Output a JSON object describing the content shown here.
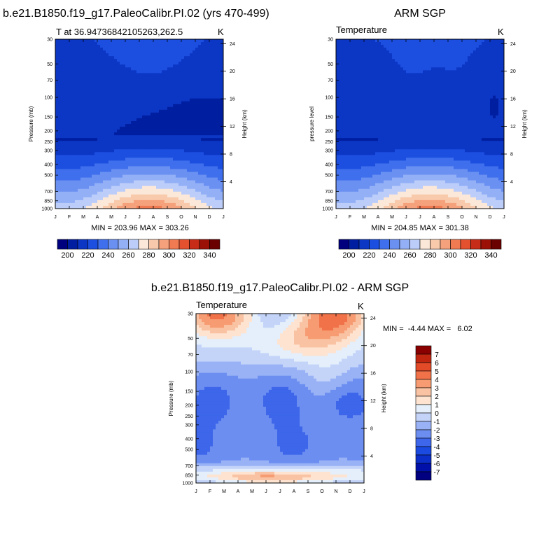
{
  "months": [
    "J",
    "F",
    "M",
    "A",
    "M",
    "J",
    "J",
    "A",
    "S",
    "O",
    "N",
    "D",
    "J"
  ],
  "pressure_ticks": [
    30,
    50,
    70,
    100,
    150,
    200,
    250,
    300,
    400,
    500,
    700,
    850,
    1000
  ],
  "height_ticks": [
    4,
    8,
    12,
    16,
    20,
    24
  ],
  "panels": [
    {
      "id": "model",
      "title": "b.e21.B1850.f19_g17.PaleoCalibr.PI.02 (yrs 470-499)",
      "subtitle_left": "T at 36.94736842105263,262.5",
      "subtitle_right": "K",
      "ylabel_left": "Pressure (mb)",
      "ylabel_right": "Height (km)",
      "minmax": "MIN = 203.96 MAX = 303.26",
      "min": 203.96,
      "max": 303.26,
      "colorbar_labels": [
        "200",
        "220",
        "240",
        "260",
        "280",
        "300",
        "320",
        "340"
      ]
    },
    {
      "id": "obs",
      "title": "ARM SGP",
      "subtitle_left": "Temperature",
      "subtitle_right": "K",
      "ylabel_left": "pressure level",
      "ylabel_right": "Height (km)",
      "minmax": "MIN = 204.85 MAX = 301.38",
      "min": 204.85,
      "max": 301.38,
      "colorbar_labels": [
        "200",
        "220",
        "240",
        "260",
        "280",
        "300",
        "320",
        "340"
      ]
    },
    {
      "id": "diff",
      "title": "b.e21.B1850.f19_g17.PaleoCalibr.PI.02 - ARM SGP",
      "subtitle_left": "Temperature",
      "subtitle_right": "K",
      "ylabel_left": "Pressure (mb)",
      "ylabel_right": "Height (km)",
      "minmax": "MIN =  -4.44 MAX =   6.02",
      "min": -4.44,
      "max": 6.02,
      "colorbar_labels": [
        "7",
        "6",
        "5",
        "4",
        "3",
        "2",
        "1",
        "0",
        "-1",
        "-2",
        "-3",
        "-4",
        "-5",
        "-6",
        "-7"
      ]
    }
  ],
  "colors": {
    "temp_scale": [
      "#00007f",
      "#001ea0",
      "#0c36c4",
      "#1c4fe0",
      "#3f6fec",
      "#6a90f2",
      "#93b0f6",
      "#bccdf9",
      "#fbe8d8",
      "#f8c9ab",
      "#f5a27c",
      "#f07a52",
      "#e4512f",
      "#c62c17",
      "#9c1106",
      "#6b0000"
    ],
    "diff_scale": [
      "#000080",
      "#0010a8",
      "#0c2ec8",
      "#1a4ae0",
      "#3d66ea",
      "#6c8ef0",
      "#99b2f5",
      "#c4d4f9",
      "#e4effb",
      "#fde3d0",
      "#f9c3a3",
      "#f79c72",
      "#f17249",
      "#e24a28",
      "#c02510",
      "#8a0000"
    ]
  },
  "chart_data": [
    {
      "type": "heatmap",
      "title": "b.e21.B1850.f19_g17.PaleoCalibr.PI.02 (yrs 470-499)",
      "subtitle": "T at 36.94736842105263,262.5",
      "units": "K",
      "x": [
        "J",
        "F",
        "M",
        "A",
        "M",
        "J",
        "J",
        "A",
        "S",
        "O",
        "N",
        "D",
        "J"
      ],
      "y_pressure_mb": [
        30,
        50,
        70,
        100,
        150,
        200,
        250,
        300,
        400,
        500,
        700,
        850,
        1000
      ],
      "contour_levels": [
        190,
        200,
        210,
        220,
        230,
        240,
        250,
        260,
        270,
        280,
        290,
        300,
        310,
        320,
        330,
        340,
        350
      ],
      "min": 203.96,
      "max": 303.26
    },
    {
      "type": "heatmap",
      "title": "ARM SGP",
      "subtitle": "Temperature",
      "units": "K",
      "x": [
        "J",
        "F",
        "M",
        "A",
        "M",
        "J",
        "J",
        "A",
        "S",
        "O",
        "N",
        "D",
        "J"
      ],
      "y_pressure_mb": [
        30,
        50,
        70,
        100,
        150,
        200,
        250,
        300,
        400,
        500,
        700,
        850,
        1000
      ],
      "contour_levels": [
        190,
        200,
        210,
        220,
        230,
        240,
        250,
        260,
        270,
        280,
        290,
        300,
        310,
        320,
        330,
        340,
        350
      ],
      "min": 204.85,
      "max": 301.38
    },
    {
      "type": "heatmap",
      "title": "b.e21.B1850.f19_g17.PaleoCalibr.PI.02 - ARM SGP",
      "subtitle": "Temperature",
      "units": "K",
      "x": [
        "J",
        "F",
        "M",
        "A",
        "M",
        "J",
        "J",
        "A",
        "S",
        "O",
        "N",
        "D",
        "J"
      ],
      "y_pressure_mb": [
        30,
        50,
        70,
        100,
        150,
        200,
        250,
        300,
        400,
        500,
        700,
        850,
        1000
      ],
      "contour_levels": [
        -7,
        -6,
        -5,
        -4,
        -3,
        -2,
        -1,
        0,
        1,
        2,
        3,
        4,
        5,
        6,
        7
      ],
      "min": -4.44,
      "max": 6.02
    }
  ]
}
